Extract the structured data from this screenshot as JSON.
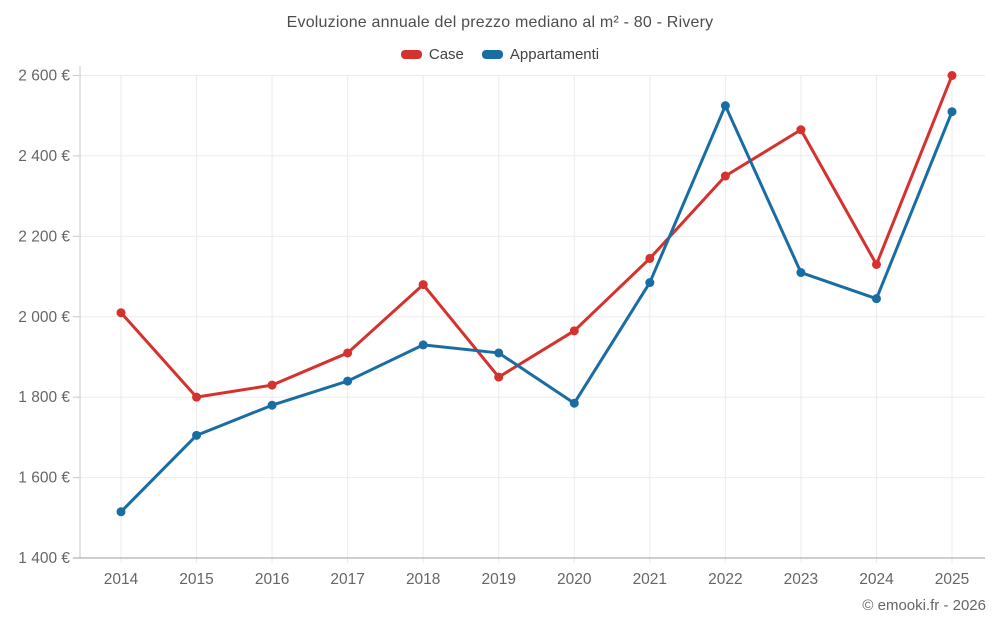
{
  "title": "Evoluzione annuale del prezzo mediano al m² - 80 - Rivery",
  "footer": "© emooki.fr - 2026",
  "chart_data": {
    "type": "line",
    "x_labels": [
      "2014",
      "2015",
      "2016",
      "2017",
      "2018",
      "2019",
      "2020",
      "2021",
      "2022",
      "2023",
      "2024",
      "2025"
    ],
    "series": [
      {
        "name": "Case",
        "color": "#d5312d",
        "values": [
          2010,
          1800,
          1830,
          1910,
          2080,
          1850,
          1965,
          2145,
          2350,
          2465,
          2130,
          2600
        ]
      },
      {
        "name": "Appartamenti",
        "color": "#1a6da3",
        "values": [
          1515,
          1705,
          1780,
          1840,
          1930,
          1910,
          1785,
          2085,
          2525,
          2110,
          2045,
          2510
        ]
      }
    ],
    "ylim": [
      1400,
      2600
    ],
    "ytick_values": [
      1400,
      1600,
      1800,
      2000,
      2200,
      2400,
      2600
    ],
    "ytick_labels": [
      "1 400 €",
      "1 600 €",
      "1 800 €",
      "2 000 €",
      "2 200 €",
      "2 400 €",
      "2 600 €"
    ],
    "currency": "€",
    "grid": true,
    "legend_position": "top",
    "colors": {
      "grid": "#ebebeb",
      "axis": "#9e9e9e",
      "tick": "#c9c9c9",
      "label": "#666666"
    }
  }
}
